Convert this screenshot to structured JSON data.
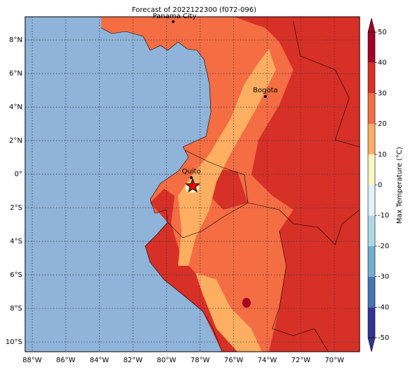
{
  "title": "Forecast of 2022122300 (f072-096)",
  "map": {
    "xlim": [
      -88.42,
      -68.5
    ],
    "ylim": [
      -10.58,
      9.38
    ],
    "lon_ticks": [
      {
        "value": -88,
        "label": "88°W"
      },
      {
        "value": -86,
        "label": "86°W"
      },
      {
        "value": -84,
        "label": "84°W"
      },
      {
        "value": -82,
        "label": "82°W"
      },
      {
        "value": -80,
        "label": "80°W"
      },
      {
        "value": -78,
        "label": "78°W"
      },
      {
        "value": -76,
        "label": "76°W"
      },
      {
        "value": -74,
        "label": "74°W"
      },
      {
        "value": -72,
        "label": "72°W"
      },
      {
        "value": -70,
        "label": "70°W"
      }
    ],
    "lat_ticks": [
      {
        "value": 8,
        "label": "8°N"
      },
      {
        "value": 6,
        "label": "6°N"
      },
      {
        "value": 4,
        "label": "4°N"
      },
      {
        "value": 2,
        "label": "2°N"
      },
      {
        "value": 0,
        "label": "0°"
      },
      {
        "value": -2,
        "label": "2°S"
      },
      {
        "value": -4,
        "label": "4°S"
      },
      {
        "value": -6,
        "label": "6°S"
      },
      {
        "value": -8,
        "label": "8°S"
      },
      {
        "value": -10,
        "label": "10°S"
      }
    ],
    "cities": [
      "Panama City",
      "Bogota",
      "Quito"
    ]
  },
  "colorbar": {
    "label": "Max Temperature (°C)",
    "ticks": [
      -50,
      -40,
      -30,
      -20,
      -10,
      0,
      10,
      20,
      30,
      40,
      50
    ],
    "colors": [
      "#313695",
      "#4575b4",
      "#74add1",
      "#abd9e9",
      "#e0f3f8",
      "#fff5c0",
      "#fdae61",
      "#f46d43",
      "#d73027",
      "#a50026"
    ]
  }
}
